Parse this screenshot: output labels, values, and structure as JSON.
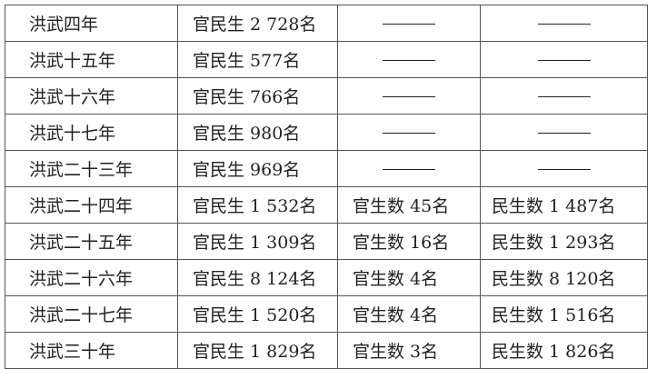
{
  "rows": [
    {
      "year": "洪武四年",
      "total": "官民生 2 728名",
      "official": "——",
      "civil": "——"
    },
    {
      "year": "洪武十五年",
      "total": "官民生 577名",
      "official": "——",
      "civil": "——"
    },
    {
      "year": "洪武十六年",
      "total": "官民生 766名",
      "official": "——",
      "civil": "——"
    },
    {
      "year": "洪武十七年",
      "total": "官民生 980名",
      "official": "——",
      "civil": "——"
    },
    {
      "year": "洪武二十三年",
      "total": "官民生 969名",
      "official": "——",
      "civil": "——"
    },
    {
      "year": "洪武二十四年",
      "total": "官民生 1 532名",
      "official": "官生数 45名",
      "civil": "民生数 1 487名"
    },
    {
      "year": "洪武二十五年",
      "total": "官民生 1 309名",
      "official": "官生数 16名",
      "civil": "民生数 1 293名"
    },
    {
      "year": "洪武二十六年",
      "total": "官民生 8 124名",
      "official": "官生数 4名",
      "civil": "民生数 8 120名"
    },
    {
      "year": "洪武二十七年",
      "total": "官民生 1 520名",
      "official": "官生数 4名",
      "civil": "民生数 1 516名"
    },
    {
      "year": "洪武三十年",
      "total": "官民生 1 829名",
      "official": "官生数 3名",
      "civil": "民生数 1 826名"
    }
  ]
}
